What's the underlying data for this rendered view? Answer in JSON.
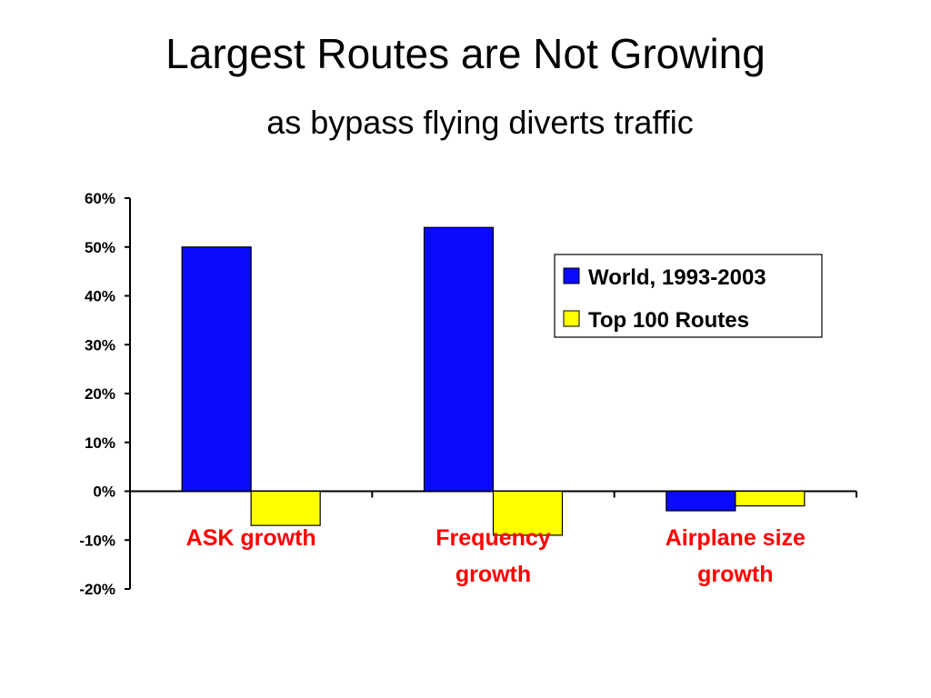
{
  "title": "Largest Routes are Not Growing",
  "subtitle": "as bypass flying diverts traffic",
  "colors": {
    "series_world": "#0a0aff",
    "series_top100": "#ffff00",
    "category_label": "#ff0000",
    "axis": "#000000"
  },
  "chart_data": {
    "type": "bar",
    "categories": [
      [
        "ASK growth"
      ],
      [
        "Frequency",
        "growth"
      ],
      [
        "Airplane size",
        "growth"
      ]
    ],
    "series": [
      {
        "name": "World, 1993-2003",
        "values": [
          50,
          54,
          -4
        ]
      },
      {
        "name": "Top 100 Routes",
        "values": [
          -7,
          -9,
          -3
        ]
      }
    ],
    "yticks": [
      "60%",
      "50%",
      "40%",
      "30%",
      "20%",
      "10%",
      "0%",
      "-10%",
      "-20%"
    ],
    "ylim": [
      -20,
      60
    ],
    "value_unit": "%",
    "grid": false,
    "legend_position": "top-right",
    "xlabel": "",
    "ylabel": ""
  }
}
